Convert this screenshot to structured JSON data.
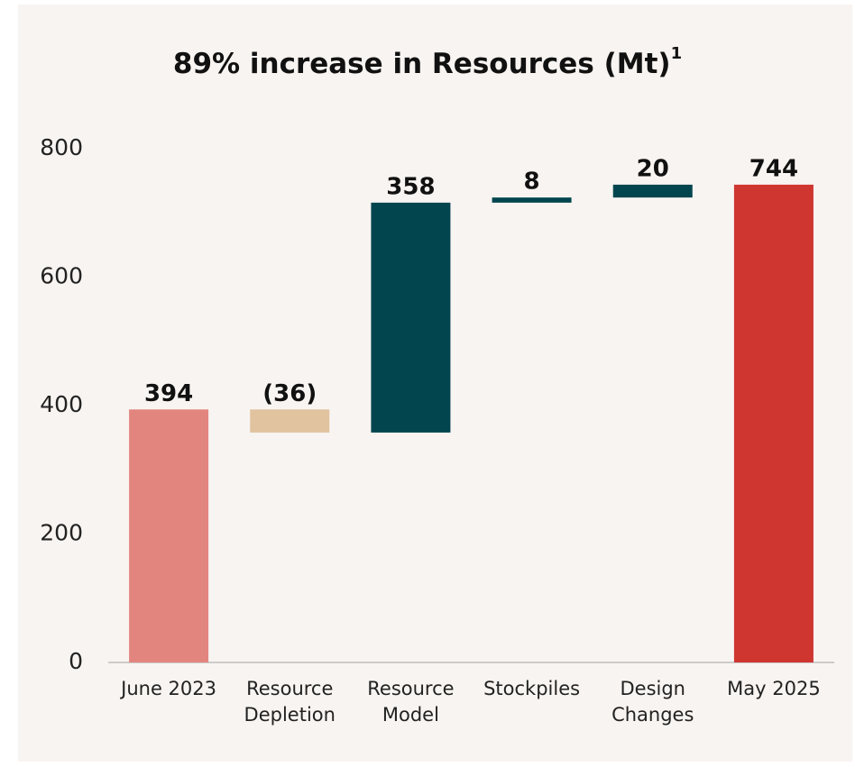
{
  "chart_data": {
    "type": "waterfall",
    "title": "89% increase in Resources (Mt)",
    "title_note": "1",
    "categories": [
      [
        "June 2023"
      ],
      [
        "Resource",
        "Depletion"
      ],
      [
        "Resource",
        "Model"
      ],
      [
        "Stockpiles"
      ],
      [
        "Design",
        "Changes"
      ],
      [
        "May 2025"
      ]
    ],
    "values": [
      394,
      -36,
      358,
      8,
      20,
      744
    ],
    "value_labels": [
      "394",
      "(36)",
      "358",
      "8",
      "20",
      "744"
    ],
    "totals": [
      true,
      false,
      false,
      false,
      false,
      true
    ],
    "colors": [
      "#e2857f",
      "#e1c39f",
      "#02454f",
      "#02454f",
      "#02454f",
      "#cf3630"
    ],
    "ylim": [
      0,
      800
    ],
    "yticks": [
      0,
      200,
      400,
      600,
      800
    ],
    "grid": false
  }
}
